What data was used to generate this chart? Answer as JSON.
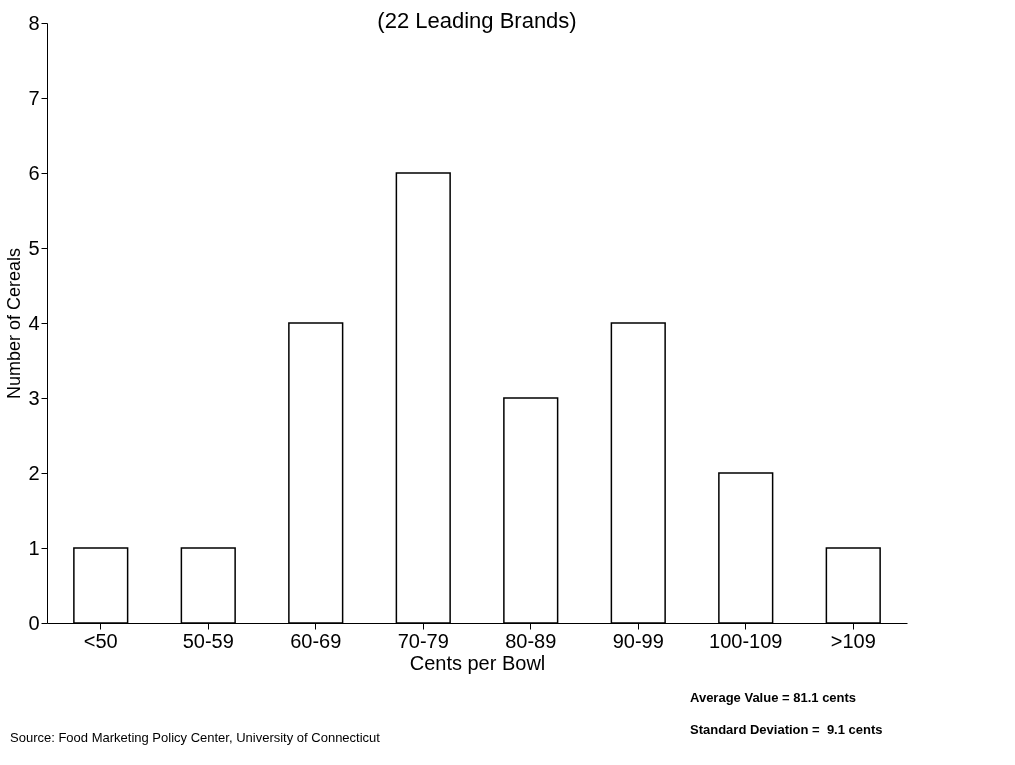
{
  "chart_data": {
    "type": "bar",
    "title": "(22 Leading Brands)",
    "xlabel": "Cents per Bowl",
    "ylabel": "Number of Cereals",
    "categories": [
      "<50",
      "50-59",
      "60-69",
      "70-79",
      "80-89",
      "90-99",
      "100-109",
      ">109"
    ],
    "values": [
      1,
      1,
      4,
      6,
      3,
      4,
      2,
      1
    ],
    "color": "#ffffff",
    "ylim": [
      0,
      8
    ],
    "yticks": [
      0,
      1,
      2,
      3,
      4,
      5,
      6,
      7,
      8
    ],
    "grid": false,
    "annotations": [
      "Average Value = 81.1 cents",
      "Standard Deviation =  9.1 cents",
      "Source: Food Marketing Policy Center, University of Connecticut"
    ]
  }
}
